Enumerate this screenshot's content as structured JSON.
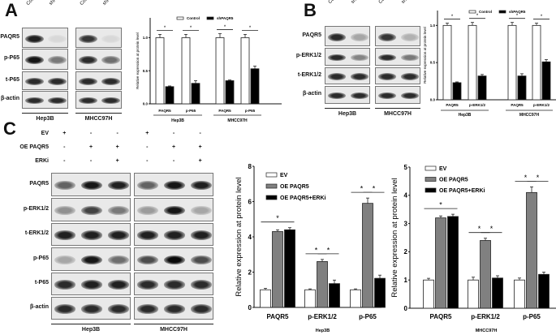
{
  "panels": {
    "a": "A",
    "b": "B",
    "c": "C"
  },
  "blot_a": {
    "lanes": [
      "Control",
      "shPAQR5"
    ],
    "cells": [
      "Hep3B",
      "MHCC97H"
    ],
    "rows": [
      {
        "label": "PAQR5",
        "intensity": [
          [
            0.9,
            0.08
          ],
          [
            0.8,
            0.08
          ]
        ]
      },
      {
        "label": "p-P65",
        "intensity": [
          [
            0.95,
            0.5
          ],
          [
            0.85,
            0.55
          ]
        ]
      },
      {
        "label": "t-P65",
        "intensity": [
          [
            0.85,
            0.85
          ],
          [
            0.85,
            0.85
          ]
        ]
      },
      {
        "label": "β-actin",
        "intensity": [
          [
            0.85,
            0.85
          ],
          [
            0.85,
            0.85
          ]
        ]
      }
    ]
  },
  "blot_b": {
    "lanes": [
      "Control",
      "shPAQR5"
    ],
    "cells": [
      "Hep3B",
      "MHCC97H"
    ],
    "rows": [
      {
        "label": "PAQR5",
        "intensity": [
          [
            0.85,
            0.3
          ],
          [
            0.8,
            0.25
          ]
        ]
      },
      {
        "label": "p-ERK1/2",
        "intensity": [
          [
            0.85,
            0.45
          ],
          [
            0.85,
            0.5
          ]
        ]
      },
      {
        "label": "t-ERK1/2",
        "intensity": [
          [
            0.85,
            0.85
          ],
          [
            0.85,
            0.85
          ]
        ]
      },
      {
        "label": "β-actin",
        "intensity": [
          [
            0.85,
            0.85
          ],
          [
            0.85,
            0.85
          ]
        ]
      }
    ]
  },
  "blot_c": {
    "treatments": [
      {
        "label": "EV",
        "marks": [
          "+",
          "-",
          "-",
          "+",
          "-",
          "-"
        ]
      },
      {
        "label": "OE PAQR5",
        "marks": [
          "-",
          "+",
          "+",
          "-",
          "+",
          "+"
        ]
      },
      {
        "label": "ERKi",
        "marks": [
          "-",
          "-",
          "+",
          "-",
          "-",
          "+"
        ]
      }
    ],
    "cells": [
      "Hep3B",
      "MHCC97H"
    ],
    "rows": [
      {
        "label": "PAQR5",
        "intensity": [
          [
            0.6,
            0.95,
            0.9
          ],
          [
            0.6,
            0.95,
            0.9
          ]
        ]
      },
      {
        "label": "p-ERK1/2",
        "intensity": [
          [
            0.4,
            0.75,
            0.5
          ],
          [
            0.35,
            0.95,
            0.3
          ]
        ]
      },
      {
        "label": "t-ERK1/2",
        "intensity": [
          [
            0.9,
            0.9,
            0.9
          ],
          [
            0.9,
            0.9,
            0.9
          ]
        ]
      },
      {
        "label": "p-P65",
        "intensity": [
          [
            0.3,
            0.95,
            0.55
          ],
          [
            0.7,
            1.0,
            0.7
          ]
        ]
      },
      {
        "label": "t-P65",
        "intensity": [
          [
            0.85,
            0.9,
            0.9
          ],
          [
            0.85,
            0.85,
            0.85
          ]
        ]
      },
      {
        "label": "β-actin",
        "intensity": [
          [
            0.85,
            0.85,
            0.85
          ],
          [
            0.85,
            0.85,
            0.85
          ]
        ]
      }
    ]
  },
  "chart_data": [
    {
      "id": "A",
      "type": "bar",
      "title": "",
      "ylabel": "Relative expression at protein level",
      "ylim": [
        0,
        1.3
      ],
      "yticks": [
        "0.0",
        "0.5",
        "1.0"
      ],
      "ytick_values": [
        0,
        0.5,
        1.0
      ],
      "categories": [
        "PAQR5",
        "p-P65",
        "PAQR5",
        "p-P65"
      ],
      "groups": [
        {
          "label": "Hep3B",
          "from": 0,
          "to": 1
        },
        {
          "label": "MHCC97H",
          "from": 2,
          "to": 3
        }
      ],
      "series": [
        {
          "name": "Control",
          "color": "#ffffff",
          "values": [
            1.0,
            1.0,
            1.0,
            1.0
          ],
          "errors": [
            0.05,
            0.05,
            0.06,
            0.05
          ]
        },
        {
          "name": "shPAQR5",
          "color": "#000000",
          "values": [
            0.26,
            0.31,
            0.35,
            0.53
          ],
          "errors": [
            0.01,
            0.04,
            0.01,
            0.04
          ]
        }
      ],
      "legend": "top",
      "significance": [
        {
          "category": 0,
          "from": 0,
          "to": 1,
          "label": "*"
        },
        {
          "category": 1,
          "from": 0,
          "to": 1,
          "label": "*"
        },
        {
          "category": 2,
          "from": 0,
          "to": 1,
          "label": "*"
        },
        {
          "category": 3,
          "from": 0,
          "to": 1,
          "label": "*"
        }
      ]
    },
    {
      "id": "B",
      "type": "bar",
      "title": "",
      "ylabel": "Relative expression at protein level",
      "ylim": [
        0,
        1.2
      ],
      "yticks": [
        "0.0",
        "0.5",
        "1.0"
      ],
      "ytick_values": [
        0,
        0.5,
        1.0
      ],
      "categories": [
        "PAQR5",
        "p-ERK1/2",
        "PAQR5",
        "p-ERK1/2"
      ],
      "groups": [
        {
          "label": "Hep3B",
          "from": 0,
          "to": 1
        },
        {
          "label": "MHCC97H",
          "from": 2,
          "to": 3
        }
      ],
      "series": [
        {
          "name": "Control",
          "color": "#ffffff",
          "values": [
            1.0,
            1.0,
            1.0,
            1.0
          ],
          "errors": [
            0.03,
            0.04,
            0.04,
            0.03
          ]
        },
        {
          "name": "shPAQR5",
          "color": "#000000",
          "values": [
            0.23,
            0.32,
            0.32,
            0.51
          ],
          "errors": [
            0.01,
            0.02,
            0.03,
            0.03
          ]
        }
      ],
      "legend": "top",
      "significance": [
        {
          "category": 0,
          "from": 0,
          "to": 1,
          "label": "*"
        },
        {
          "category": 1,
          "from": 0,
          "to": 1,
          "label": "*"
        },
        {
          "category": 2,
          "from": 0,
          "to": 1,
          "label": "*"
        },
        {
          "category": 3,
          "from": 0,
          "to": 1,
          "label": "*"
        }
      ]
    },
    {
      "id": "C1",
      "type": "bar",
      "title": "",
      "ylabel": "Relative expression at protein level",
      "xlabel": "Hep3B",
      "ylim": [
        0,
        8
      ],
      "yticks": [
        "0",
        "2",
        "4",
        "6",
        "8"
      ],
      "ytick_values": [
        0,
        2,
        4,
        6,
        8
      ],
      "categories": [
        "PAQR5",
        "p-ERK1/2",
        "p-P65"
      ],
      "series": [
        {
          "name": "EV",
          "color": "#ffffff",
          "values": [
            1.0,
            1.0,
            1.0
          ],
          "errors": [
            0.08,
            0.05,
            0.05
          ]
        },
        {
          "name": "OE PAQR5",
          "color": "#808080",
          "values": [
            4.3,
            2.6,
            5.9
          ],
          "errors": [
            0.1,
            0.12,
            0.3
          ]
        },
        {
          "name": "OE PAQR5+ERKi",
          "color": "#000000",
          "values": [
            4.4,
            1.35,
            1.65
          ],
          "errors": [
            0.12,
            0.2,
            0.18
          ]
        }
      ],
      "legend": "top-left",
      "significance": [
        {
          "category": 0,
          "from": 0,
          "to": 2,
          "label": "*"
        },
        {
          "category": 1,
          "from": 0,
          "to": 1,
          "label": "*"
        },
        {
          "category": 1,
          "from": 1,
          "to": 2,
          "label": "*"
        },
        {
          "category": 2,
          "from": 0,
          "to": 1,
          "label": "*"
        },
        {
          "category": 2,
          "from": 1,
          "to": 2,
          "label": "*"
        }
      ]
    },
    {
      "id": "C2",
      "type": "bar",
      "title": "",
      "ylabel": "Relative expression at protein level",
      "xlabel": "MHCC97H",
      "ylim": [
        0,
        5
      ],
      "yticks": [
        "0",
        "1",
        "2",
        "3",
        "4",
        "5"
      ],
      "ytick_values": [
        0,
        1,
        2,
        3,
        4,
        5
      ],
      "categories": [
        "PAQR5",
        "p-ERK1/2",
        "p-P65"
      ],
      "series": [
        {
          "name": "EV",
          "color": "#ffffff",
          "values": [
            1.0,
            1.0,
            1.0
          ],
          "errors": [
            0.06,
            0.1,
            0.07
          ]
        },
        {
          "name": "OE PAQR5",
          "color": "#808080",
          "values": [
            3.2,
            2.4,
            4.1
          ],
          "errors": [
            0.07,
            0.08,
            0.2
          ]
        },
        {
          "name": "OE PAQR5+ERKi",
          "color": "#000000",
          "values": [
            3.25,
            1.07,
            1.2
          ],
          "errors": [
            0.08,
            0.08,
            0.08
          ]
        }
      ],
      "legend": "top-left",
      "significance": [
        {
          "category": 0,
          "from": 0,
          "to": 2,
          "label": "*"
        },
        {
          "category": 1,
          "from": 0,
          "to": 1,
          "label": "*"
        },
        {
          "category": 1,
          "from": 1,
          "to": 2,
          "label": "*"
        },
        {
          "category": 2,
          "from": 0,
          "to": 1,
          "label": "*"
        },
        {
          "category": 2,
          "from": 1,
          "to": 2,
          "label": "*"
        }
      ]
    }
  ]
}
